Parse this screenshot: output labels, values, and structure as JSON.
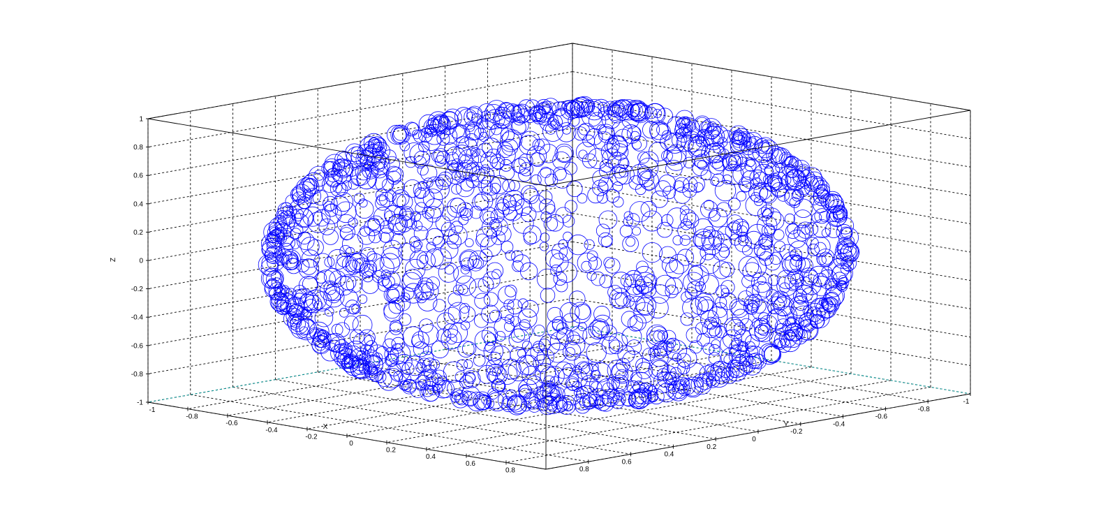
{
  "chart_data": {
    "type": "scatter",
    "title": "",
    "xlabel": "X",
    "ylabel": "Y",
    "zlabel": "Z",
    "xlim": [
      -1,
      1
    ],
    "ylim": [
      -1,
      1
    ],
    "zlim": [
      -1,
      1
    ],
    "grid": true,
    "marker": "circle",
    "marker_color": "#0000ff",
    "grid_color": "#000000",
    "axis_floor_color": "#00aaaa",
    "series": [
      {
        "shape": "sphere",
        "radius": 1,
        "center": [
          0,
          0,
          0
        ],
        "point_count": 1800
      }
    ],
    "x_ticks": [
      "0.8",
      "0.6",
      "0.4",
      "0.2",
      "0",
      "-0.2",
      "-0.4",
      "-0.6",
      "-0.8",
      "-1"
    ],
    "y_ticks": [
      "0.8",
      "0.6",
      "0.4",
      "0.2",
      "0",
      "-0.2",
      "-0.4",
      "-0.6",
      "-0.8",
      "-1"
    ],
    "z_ticks": [
      "1",
      "0.8",
      "0.6",
      "0.4",
      "0.2",
      "0",
      "-0.2",
      "-0.4",
      "-0.6",
      "-0.8",
      "-1"
    ]
  }
}
